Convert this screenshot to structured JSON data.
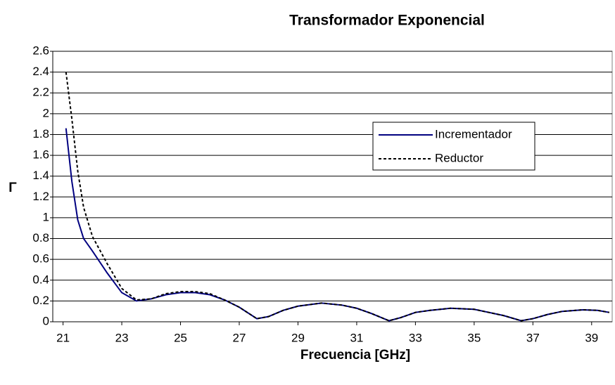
{
  "chart_data": {
    "type": "line",
    "title": "Transformador Exponencial",
    "xlabel": "Frecuencia [GHz]",
    "ylabel": "Γ",
    "xlim": [
      20.65,
      39.7
    ],
    "xticks": [
      21,
      23,
      25,
      27,
      29,
      31,
      33,
      35,
      37,
      39
    ],
    "ylim": [
      0,
      2.6
    ],
    "yticks": [
      0,
      0.2,
      0.4,
      0.6,
      0.8,
      1,
      1.2,
      1.4,
      1.6,
      1.8,
      2,
      2.2,
      2.4,
      2.6
    ],
    "grid": true,
    "legend": "right",
    "x": [
      21.1,
      21.3,
      21.5,
      21.7,
      22,
      22.5,
      23,
      23.5,
      24,
      24.5,
      25,
      25.5,
      26,
      26.5,
      27,
      27.6,
      28,
      28.5,
      29,
      29.8,
      30.5,
      31,
      31.5,
      32.1,
      32.5,
      33,
      33.5,
      34.2,
      35,
      35.5,
      36,
      36.6,
      37,
      37.5,
      38,
      38.7,
      39.2,
      39.6
    ],
    "series": [
      {
        "name": "Incrementador",
        "color": "#000080",
        "style": "solid",
        "values": [
          1.86,
          1.35,
          0.98,
          0.8,
          0.68,
          0.47,
          0.28,
          0.2,
          0.22,
          0.26,
          0.28,
          0.28,
          0.26,
          0.21,
          0.14,
          0.03,
          0.05,
          0.11,
          0.15,
          0.18,
          0.16,
          0.13,
          0.08,
          0.01,
          0.04,
          0.09,
          0.11,
          0.13,
          0.12,
          0.09,
          0.06,
          0.01,
          0.03,
          0.07,
          0.1,
          0.115,
          0.11,
          0.09
        ]
      },
      {
        "name": "Reductor",
        "color": "#000000",
        "style": "dashed",
        "values": [
          2.4,
          1.95,
          1.45,
          1.1,
          0.82,
          0.56,
          0.32,
          0.21,
          0.22,
          0.27,
          0.29,
          0.29,
          0.27,
          0.21,
          0.14,
          0.03,
          0.05,
          0.11,
          0.15,
          0.18,
          0.16,
          0.13,
          0.08,
          0.01,
          0.04,
          0.09,
          0.11,
          0.13,
          0.12,
          0.09,
          0.06,
          0.01,
          0.03,
          0.07,
          0.1,
          0.115,
          0.11,
          0.09
        ]
      }
    ]
  }
}
